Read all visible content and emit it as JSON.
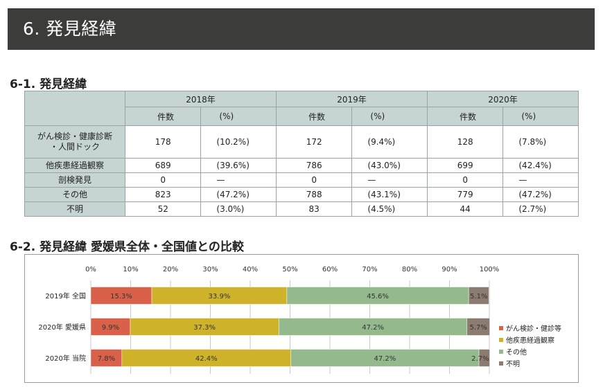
{
  "header": {
    "title": "6.  発見経緯"
  },
  "section1": {
    "title": "6-1.  発見経緯"
  },
  "table": {
    "years": [
      "2018年",
      "2019年",
      "2020年"
    ],
    "count_label": "件数",
    "pct_label": "(%)",
    "rows": [
      {
        "label": "がん検診・健康診断・人間ドック",
        "label_line1": "がん検診・健康診断",
        "label_line2": "・人間ドック",
        "values": [
          [
            "178",
            "(10.2%)"
          ],
          [
            "172",
            "(9.4%)"
          ],
          [
            "128",
            "(7.8%)"
          ]
        ]
      },
      {
        "label": "他疾患経過観察",
        "values": [
          [
            "689",
            "(39.6%)"
          ],
          [
            "786",
            "(43.0%)"
          ],
          [
            "699",
            "(42.4%)"
          ]
        ]
      },
      {
        "label": "剖検発見",
        "values": [
          [
            "0",
            "—"
          ],
          [
            "0",
            "—"
          ],
          [
            "0",
            "—"
          ]
        ]
      },
      {
        "label": "その他",
        "values": [
          [
            "823",
            "(47.2%)"
          ],
          [
            "788",
            "(43.1%)"
          ],
          [
            "779",
            "(47.2%)"
          ]
        ]
      },
      {
        "label": "不明",
        "values": [
          [
            "52",
            "(3.0%)"
          ],
          [
            "83",
            "(4.5%)"
          ],
          [
            "44",
            "(2.7%)"
          ]
        ]
      }
    ]
  },
  "section2": {
    "title": "6-2.  発見経緯   愛媛県全体・全国値との比較"
  },
  "chart_data": {
    "type": "bar",
    "orientation": "horizontal",
    "stacked": true,
    "percent": true,
    "categories": [
      "2019年 全国",
      "2020年 愛媛県",
      "2020年 当院"
    ],
    "series": [
      {
        "name": "がん検診・健診等",
        "color": "#d9614a",
        "values": [
          15.3,
          9.9,
          7.8
        ],
        "labels": [
          "15.3%",
          "9.9%",
          "7.8%"
        ]
      },
      {
        "name": "他疾患経過観察",
        "color": "#cdb22a",
        "values": [
          33.9,
          37.3,
          42.4
        ],
        "labels": [
          "33.9%",
          "37.3%",
          "42.4%"
        ]
      },
      {
        "name": "その他",
        "color": "#94b98d",
        "values": [
          45.6,
          47.2,
          47.2
        ],
        "labels": [
          "45.6%",
          "47.2%",
          "47.2%"
        ]
      },
      {
        "name": "不明",
        "color": "#8c7b70",
        "values": [
          5.1,
          5.7,
          2.7
        ],
        "labels": [
          "5.1%",
          "5.7%",
          "2.7%"
        ]
      }
    ],
    "xlim": [
      0,
      100
    ],
    "ticks": [
      "0%",
      "10%",
      "20%",
      "30%",
      "40%",
      "50%",
      "60%",
      "70%",
      "80%",
      "90%",
      "100%"
    ],
    "legend": "right",
    "grid": true
  }
}
